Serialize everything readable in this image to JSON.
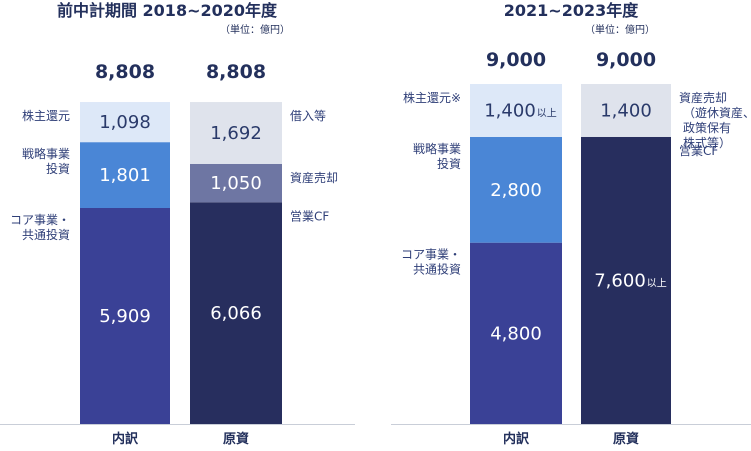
{
  "chart_data": [
    {
      "type": "bar",
      "stacked": true,
      "title": "前中計期間 2018~2020年度",
      "unit": "（単位：億円）",
      "categories": [
        "内訳",
        "原資"
      ],
      "totals": [
        "8,808",
        "8,808"
      ],
      "ylim": [
        0,
        9000
      ],
      "stacks": [
        {
          "category": "内訳",
          "segments": [
            {
              "value": 5909,
              "label": "5,909",
              "name": "コア事業・\n共通投資",
              "color": "#3a4196",
              "text_color": "#ffffff"
            },
            {
              "value": 1801,
              "label": "1,801",
              "name": "戦略事業\n投資",
              "color": "#4a86d6",
              "text_color": "#ffffff"
            },
            {
              "value": 1098,
              "label": "1,098",
              "name": "株主還元",
              "color": "#dde8f8",
              "text_color": "#2a3a6a"
            }
          ]
        },
        {
          "category": "原資",
          "segments": [
            {
              "value": 6066,
              "label": "6,066",
              "name": "営業CF",
              "color": "#272e5e",
              "text_color": "#ffffff"
            },
            {
              "value": 1050,
              "label": "1,050",
              "name": "資産売却",
              "color": "#6e76a3",
              "text_color": "#ffffff"
            },
            {
              "value": 1692,
              "label": "1,692",
              "name": "借入等",
              "color": "#dfe3ec",
              "text_color": "#2a3a6a"
            }
          ]
        }
      ]
    },
    {
      "type": "bar",
      "stacked": true,
      "title": "2021~2023年度",
      "unit": "（単位：億円）",
      "categories": [
        "内訳",
        "原資"
      ],
      "totals": [
        "9,000",
        "9,000"
      ],
      "ylim": [
        0,
        9000
      ],
      "stacks": [
        {
          "category": "内訳",
          "segments": [
            {
              "value": 4800,
              "label": "4,800",
              "name": "コア事業・\n共通投資",
              "color": "#3a4196",
              "text_color": "#ffffff"
            },
            {
              "value": 2800,
              "label": "2,800",
              "name": "戦略事業\n投資",
              "color": "#4a86d6",
              "text_color": "#ffffff"
            },
            {
              "value": 1400,
              "label": "1,400",
              "suffix": "以上",
              "name": "株主還元※",
              "color": "#dde8f8",
              "text_color": "#2a3a6a"
            }
          ]
        },
        {
          "category": "原資",
          "segments": [
            {
              "value": 7600,
              "label": "7,600",
              "suffix": "以上",
              "name": "営業CF",
              "color": "#272e5e",
              "text_color": "#ffffff"
            },
            {
              "value": 1400,
              "label": "1,400",
              "name": "資産売却\n（遊休資産、\n政策保有\n株式等）",
              "color": "#dfe3ec",
              "text_color": "#2a3a6a"
            }
          ]
        }
      ]
    }
  ]
}
